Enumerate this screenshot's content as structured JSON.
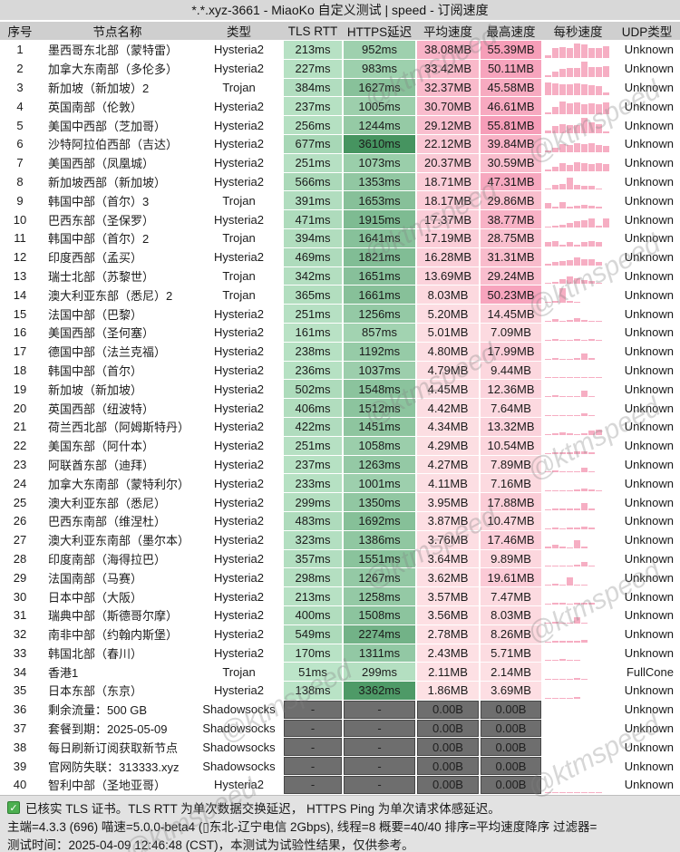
{
  "title": "*.*.xyz-3661 - MiaoKo 自定义测试 | speed - 订阅速度",
  "columns": [
    "序号",
    "节点名称",
    "类型",
    "TLS RTT",
    "HTTPS延迟",
    "平均速度",
    "最高速度",
    "每秒速度",
    "UDP类型"
  ],
  "colors": {
    "green_light": "#bee6ca",
    "green_dark": "#469460",
    "pink_light": "#fde3e6",
    "pink_dark": "#f69db8",
    "bar_pink": "#f6aec3",
    "gray_cell": "#6e6e6e"
  },
  "scales": {
    "latency_max_ms": 3610,
    "speed_max_mb": 55.81
  },
  "rows": [
    {
      "idx": "1",
      "name": "墨西哥东北部（蒙特雷）",
      "type": "Hysteria2",
      "tls": "213ms",
      "tls_ms": 213,
      "https": "952ms",
      "https_ms": 952,
      "avg": "38.08MB",
      "avg_mb": 38.08,
      "max": "55.39MB",
      "max_mb": 55.39,
      "udp": "Unknown",
      "spark": [
        0.15,
        0.62,
        0.66,
        0.62,
        0.88,
        0.82,
        0.62,
        0.58,
        0.72
      ]
    },
    {
      "idx": "2",
      "name": "加拿大东南部（多伦多）",
      "type": "Hysteria2",
      "tls": "227ms",
      "tls_ms": 227,
      "https": "983ms",
      "https_ms": 983,
      "avg": "33.42MB",
      "avg_mb": 33.42,
      "max": "50.11MB",
      "max_mb": 50.11,
      "udp": "Unknown",
      "spark": [
        0.08,
        0.3,
        0.48,
        0.52,
        0.56,
        0.92,
        0.6,
        0.58,
        0.62
      ]
    },
    {
      "idx": "3",
      "name": "新加坡（新加坡）2",
      "type": "Trojan",
      "tls": "384ms",
      "tls_ms": 384,
      "https": "1627ms",
      "https_ms": 1627,
      "avg": "32.37MB",
      "avg_mb": 32.37,
      "max": "45.58MB",
      "max_mb": 45.58,
      "udp": "Unknown",
      "spark": [
        0.78,
        0.72,
        0.68,
        0.68,
        0.72,
        0.68,
        0.66,
        0.6,
        0.18
      ]
    },
    {
      "idx": "4",
      "name": "英国南部（伦敦）",
      "type": "Hysteria2",
      "tls": "237ms",
      "tls_ms": 237,
      "https": "1005ms",
      "https_ms": 1005,
      "avg": "30.70MB",
      "avg_mb": 30.7,
      "max": "46.61MB",
      "max_mb": 46.61,
      "udp": "Unknown",
      "spark": [
        0.12,
        0.48,
        0.78,
        0.66,
        0.72,
        0.62,
        0.68,
        0.62,
        0.72
      ]
    },
    {
      "idx": "5",
      "name": "美国中西部（芝加哥）",
      "type": "Hysteria2",
      "tls": "256ms",
      "tls_ms": 256,
      "https": "1244ms",
      "https_ms": 1244,
      "avg": "29.12MB",
      "avg_mb": 29.12,
      "max": "55.81MB",
      "max_mb": 55.81,
      "udp": "Unknown",
      "spark": [
        0.18,
        0.45,
        0.58,
        0.52,
        0.48,
        0.92,
        0.66,
        0.58,
        0.1
      ]
    },
    {
      "idx": "6",
      "name": "沙特阿拉伯西部（吉达）",
      "type": "Hysteria2",
      "tls": "677ms",
      "tls_ms": 677,
      "https": "3610ms",
      "https_ms": 3610,
      "avg": "22.12MB",
      "avg_mb": 22.12,
      "max": "39.84MB",
      "max_mb": 39.84,
      "udp": "Unknown",
      "spark": [
        0.08,
        0.28,
        0.48,
        0.42,
        0.56,
        0.48,
        0.56,
        0.44,
        0.38
      ]
    },
    {
      "idx": "7",
      "name": "美国西部（凤凰城）",
      "type": "Hysteria2",
      "tls": "251ms",
      "tls_ms": 251,
      "https": "1073ms",
      "https_ms": 1073,
      "avg": "20.37MB",
      "avg_mb": 20.37,
      "max": "30.59MB",
      "max_mb": 30.59,
      "udp": "Unknown",
      "spark": [
        0.1,
        0.28,
        0.46,
        0.38,
        0.52,
        0.48,
        0.42,
        0.48,
        0.42
      ]
    },
    {
      "idx": "8",
      "name": "新加坡西部（新加坡）",
      "type": "Hysteria2",
      "tls": "566ms",
      "tls_ms": 566,
      "https": "1353ms",
      "https_ms": 1353,
      "avg": "18.71MB",
      "avg_mb": 18.71,
      "max": "47.31MB",
      "max_mb": 47.31,
      "udp": "Unknown",
      "spark": [
        0.1,
        0.32,
        0.38,
        0.72,
        0.3,
        0.26,
        0.22,
        0.1
      ]
    },
    {
      "idx": "9",
      "name": "韩国中部（首尔）3",
      "type": "Trojan",
      "tls": "391ms",
      "tls_ms": 391,
      "https": "1653ms",
      "https_ms": 1653,
      "avg": "18.17MB",
      "avg_mb": 18.17,
      "max": "29.86MB",
      "max_mb": 29.86,
      "udp": "Unknown",
      "spark": [
        0.32,
        0.1,
        0.38,
        0.1,
        0.18,
        0.24,
        0.2,
        0.1
      ]
    },
    {
      "idx": "10",
      "name": "巴西东部（圣保罗）",
      "type": "Hysteria2",
      "tls": "471ms",
      "tls_ms": 471,
      "https": "1915ms",
      "https_ms": 1915,
      "avg": "17.37MB",
      "avg_mb": 17.37,
      "max": "38.77MB",
      "max_mb": 38.77,
      "udp": "Unknown",
      "spark": [
        0.05,
        0.1,
        0.18,
        0.28,
        0.38,
        0.45,
        0.58,
        0.12,
        0.58
      ]
    },
    {
      "idx": "11",
      "name": "韩国中部（首尔）2",
      "type": "Trojan",
      "tls": "394ms",
      "tls_ms": 394,
      "https": "1641ms",
      "https_ms": 1641,
      "avg": "17.19MB",
      "avg_mb": 17.19,
      "max": "28.75MB",
      "max_mb": 28.75,
      "udp": "Unknown",
      "spark": [
        0.28,
        0.34,
        0.1,
        0.24,
        0.1,
        0.28,
        0.3,
        0.24
      ]
    },
    {
      "idx": "12",
      "name": "印度西部（孟买）",
      "type": "Hysteria2",
      "tls": "469ms",
      "tls_ms": 469,
      "https": "1821ms",
      "https_ms": 1821,
      "avg": "16.28MB",
      "avg_mb": 16.28,
      "max": "31.31MB",
      "max_mb": 31.31,
      "udp": "Unknown",
      "spark": [
        0.08,
        0.18,
        0.24,
        0.3,
        0.48,
        0.38,
        0.34,
        0.18
      ]
    },
    {
      "idx": "13",
      "name": "瑞士北部（苏黎世）",
      "type": "Trojan",
      "tls": "342ms",
      "tls_ms": 342,
      "https": "1651ms",
      "https_ms": 1651,
      "avg": "13.69MB",
      "avg_mb": 13.69,
      "max": "29.24MB",
      "max_mb": 29.24,
      "udp": "Unknown",
      "spark": [
        0.06,
        0.12,
        0.3,
        0.44,
        0.34,
        0.24,
        0.18,
        0.06
      ]
    },
    {
      "idx": "14",
      "name": "澳大利亚东部（悉尼）2",
      "type": "Trojan",
      "tls": "365ms",
      "tls_ms": 365,
      "https": "1661ms",
      "https_ms": 1661,
      "avg": "8.03MB",
      "avg_mb": 8.03,
      "max": "50.23MB",
      "max_mb": 50.23,
      "udp": "Unknown",
      "spark": [
        0.05,
        0.12,
        0.88,
        0.14,
        0.05
      ]
    },
    {
      "idx": "15",
      "name": "法国中部（巴黎）",
      "type": "Hysteria2",
      "tls": "251ms",
      "tls_ms": 251,
      "https": "1256ms",
      "https_ms": 1256,
      "avg": "5.20MB",
      "avg_mb": 5.2,
      "max": "14.45MB",
      "max_mb": 14.45,
      "udp": "Unknown",
      "spark": [
        0.05,
        0.14,
        0.05,
        0.1,
        0.22,
        0.1,
        0.08,
        0.05
      ]
    },
    {
      "idx": "16",
      "name": "美国西部（圣何塞）",
      "type": "Hysteria2",
      "tls": "161ms",
      "tls_ms": 161,
      "https": "857ms",
      "https_ms": 857,
      "avg": "5.01MB",
      "avg_mb": 5.01,
      "max": "7.09MB",
      "max_mb": 7.09,
      "udp": "Unknown",
      "spark": [
        0.05,
        0.08,
        0.04,
        0.06,
        0.1,
        0.05,
        0.08,
        0.04
      ]
    },
    {
      "idx": "17",
      "name": "德国中部（法兰克福）",
      "type": "Hysteria2",
      "tls": "238ms",
      "tls_ms": 238,
      "https": "1192ms",
      "https_ms": 1192,
      "avg": "4.80MB",
      "avg_mb": 4.8,
      "max": "17.99MB",
      "max_mb": 17.99,
      "udp": "Unknown",
      "spark": [
        0.04,
        0.06,
        0.05,
        0.04,
        0.06,
        0.38,
        0.06
      ]
    },
    {
      "idx": "18",
      "name": "韩国中部（首尔）",
      "type": "Hysteria2",
      "tls": "236ms",
      "tls_ms": 236,
      "https": "1037ms",
      "https_ms": 1037,
      "avg": "4.79MB",
      "avg_mb": 4.79,
      "max": "9.44MB",
      "max_mb": 9.44,
      "udp": "Unknown",
      "spark": [
        0.05,
        0.08,
        0.06,
        0.1,
        0.08,
        0.06,
        0.1,
        0.05
      ]
    },
    {
      "idx": "19",
      "name": "新加坡（新加坡）",
      "type": "Hysteria2",
      "tls": "502ms",
      "tls_ms": 502,
      "https": "1548ms",
      "https_ms": 1548,
      "avg": "4.45MB",
      "avg_mb": 4.45,
      "max": "12.36MB",
      "max_mb": 12.36,
      "udp": "Unknown",
      "spark": [
        0.06,
        0.1,
        0.05,
        0.06,
        0.08,
        0.4,
        0.08
      ]
    },
    {
      "idx": "20",
      "name": "英国西部（纽波特）",
      "type": "Hysteria2",
      "tls": "406ms",
      "tls_ms": 406,
      "https": "1512ms",
      "https_ms": 1512,
      "avg": "4.42MB",
      "avg_mb": 4.42,
      "max": "7.64MB",
      "max_mb": 7.64,
      "udp": "Unknown",
      "spark": [
        0.04,
        0.08,
        0.08,
        0.08,
        0.06,
        0.14,
        0.06
      ]
    },
    {
      "idx": "21",
      "name": "荷兰西北部（阿姆斯特丹）",
      "type": "Hysteria2",
      "tls": "422ms",
      "tls_ms": 422,
      "https": "1451ms",
      "https_ms": 1451,
      "avg": "4.34MB",
      "avg_mb": 4.34,
      "max": "13.32MB",
      "max_mb": 13.32,
      "udp": "Unknown",
      "spark": [
        0.05,
        0.12,
        0.14,
        0.1,
        0.05,
        0.08,
        0.28,
        0.3
      ]
    },
    {
      "idx": "22",
      "name": "美国东部（阿什本）",
      "type": "Hysteria2",
      "tls": "251ms",
      "tls_ms": 251,
      "https": "1058ms",
      "https_ms": 1058,
      "avg": "4.29MB",
      "avg_mb": 4.29,
      "max": "10.54MB",
      "max_mb": 10.54,
      "udp": "Unknown",
      "spark": [
        0.04,
        0.08,
        0.06,
        0.1,
        0.14,
        0.12,
        0.08
      ]
    },
    {
      "idx": "23",
      "name": "阿联酋东部（迪拜）",
      "type": "Hysteria2",
      "tls": "237ms",
      "tls_ms": 237,
      "https": "1263ms",
      "https_ms": 1263,
      "avg": "4.27MB",
      "avg_mb": 4.27,
      "max": "7.89MB",
      "max_mb": 7.89,
      "udp": "Unknown",
      "spark": [
        0.05,
        0.14,
        0.08,
        0.05,
        0.06,
        0.3,
        0.1
      ]
    },
    {
      "idx": "24",
      "name": "加拿大东南部（蒙特利尔）",
      "type": "Hysteria2",
      "tls": "233ms",
      "tls_ms": 233,
      "https": "1001ms",
      "https_ms": 1001,
      "avg": "4.11MB",
      "avg_mb": 4.11,
      "max": "7.16MB",
      "max_mb": 7.16,
      "udp": "Unknown",
      "spark": [
        0.04,
        0.08,
        0.06,
        0.05,
        0.14,
        0.18,
        0.1,
        0.08
      ]
    },
    {
      "idx": "25",
      "name": "澳大利亚东部（悉尼）",
      "type": "Hysteria2",
      "tls": "299ms",
      "tls_ms": 299,
      "https": "1350ms",
      "https_ms": 1350,
      "avg": "3.95MB",
      "avg_mb": 3.95,
      "max": "17.88MB",
      "max_mb": 17.88,
      "udp": "Unknown",
      "spark": [
        0.05,
        0.1,
        0.08,
        0.12,
        0.08,
        0.42,
        0.08
      ]
    },
    {
      "idx": "26",
      "name": "巴西东南部（维涅杜）",
      "type": "Hysteria2",
      "tls": "483ms",
      "tls_ms": 483,
      "https": "1692ms",
      "https_ms": 1692,
      "avg": "3.87MB",
      "avg_mb": 3.87,
      "max": "10.47MB",
      "max_mb": 10.47,
      "udp": "Unknown",
      "spark": [
        0.05,
        0.08,
        0.06,
        0.1,
        0.08,
        0.14,
        0.12
      ]
    },
    {
      "idx": "27",
      "name": "澳大利亚东南部（墨尔本）",
      "type": "Hysteria2",
      "tls": "323ms",
      "tls_ms": 323,
      "https": "1386ms",
      "https_ms": 1386,
      "avg": "3.76MB",
      "avg_mb": 3.76,
      "max": "17.46MB",
      "max_mb": 17.46,
      "udp": "Unknown",
      "spark": [
        0.06,
        0.22,
        0.06,
        0.05,
        0.45,
        0.08
      ]
    },
    {
      "idx": "28",
      "name": "印度南部（海得拉巴）",
      "type": "Hysteria2",
      "tls": "357ms",
      "tls_ms": 357,
      "https": "1551ms",
      "https_ms": 1551,
      "avg": "3.64MB",
      "avg_mb": 3.64,
      "max": "9.89MB",
      "max_mb": 9.89,
      "udp": "Unknown",
      "spark": [
        0.05,
        0.1,
        0.08,
        0.06,
        0.12,
        0.3,
        0.08
      ]
    },
    {
      "idx": "29",
      "name": "法国南部（马赛）",
      "type": "Hysteria2",
      "tls": "298ms",
      "tls_ms": 298,
      "https": "1267ms",
      "https_ms": 1267,
      "avg": "3.62MB",
      "avg_mb": 3.62,
      "max": "19.61MB",
      "max_mb": 19.61,
      "udp": "Unknown",
      "spark": [
        0.06,
        0.1,
        0.05,
        0.5,
        0.08,
        0.06
      ]
    },
    {
      "idx": "30",
      "name": "日本中部（大阪）",
      "type": "Hysteria2",
      "tls": "213ms",
      "tls_ms": 213,
      "https": "1258ms",
      "https_ms": 1258,
      "avg": "3.57MB",
      "avg_mb": 3.57,
      "max": "7.47MB",
      "max_mb": 7.47,
      "udp": "Unknown",
      "spark": [
        0.05,
        0.08,
        0.1,
        0.06,
        0.08,
        0.12,
        0.08
      ]
    },
    {
      "idx": "31",
      "name": "瑞典中部（斯德哥尔摩）",
      "type": "Hysteria2",
      "tls": "400ms",
      "tls_ms": 400,
      "https": "1508ms",
      "https_ms": 1508,
      "avg": "3.56MB",
      "avg_mb": 3.56,
      "max": "8.03MB",
      "max_mb": 8.03,
      "udp": "Unknown",
      "spark": [
        0.05,
        0.1,
        0.04,
        0.06,
        0.35,
        0.06
      ]
    },
    {
      "idx": "32",
      "name": "南非中部（约翰内斯堡）",
      "type": "Hysteria2",
      "tls": "549ms",
      "tls_ms": 549,
      "https": "2274ms",
      "https_ms": 2274,
      "avg": "2.78MB",
      "avg_mb": 2.78,
      "max": "8.26MB",
      "max_mb": 8.26,
      "udp": "Unknown",
      "spark": [
        0.04,
        0.08,
        0.06,
        0.1,
        0.08,
        0.12
      ]
    },
    {
      "idx": "33",
      "name": "韩国北部（春川）",
      "type": "Hysteria2",
      "tls": "170ms",
      "tls_ms": 170,
      "https": "1311ms",
      "https_ms": 1311,
      "avg": "2.43MB",
      "avg_mb": 2.43,
      "max": "5.71MB",
      "max_mb": 5.71,
      "udp": "Unknown",
      "spark": [
        0.04,
        0.1,
        0.12,
        0.08,
        0.06
      ]
    },
    {
      "idx": "34",
      "name": "香港1",
      "type": "Trojan",
      "tls": "51ms",
      "tls_ms": 51,
      "https": "299ms",
      "https_ms": 299,
      "avg": "2.11MB",
      "avg_mb": 2.11,
      "max": "2.14MB",
      "max_mb": 2.14,
      "udp": "FullCone",
      "spark": [
        0.03,
        0.05,
        0.08,
        0.06,
        0.12,
        0.04
      ]
    },
    {
      "idx": "35",
      "name": "日本东部（东京）",
      "type": "Hysteria2",
      "tls": "138ms",
      "tls_ms": 138,
      "https": "3362ms",
      "https_ms": 3362,
      "avg": "1.86MB",
      "avg_mb": 1.86,
      "max": "3.69MB",
      "max_mb": 3.69,
      "udp": "Unknown",
      "spark": [
        0.03,
        0.04,
        0.06,
        0.04,
        0.08
      ]
    },
    {
      "idx": "36",
      "name": "剩余流量：500 GB",
      "type": "Shadowsocks",
      "tls": "-",
      "https": "-",
      "avg": "0.00B",
      "max": "0.00B",
      "udp": "Unknown",
      "gray": true,
      "spark": []
    },
    {
      "idx": "37",
      "name": "套餐到期：2025-05-09",
      "type": "Shadowsocks",
      "tls": "-",
      "https": "-",
      "avg": "0.00B",
      "max": "0.00B",
      "udp": "Unknown",
      "gray": true,
      "spark": []
    },
    {
      "idx": "38",
      "name": "每日刷新订阅获取新节点",
      "type": "Shadowsocks",
      "tls": "-",
      "https": "-",
      "avg": "0.00B",
      "max": "0.00B",
      "udp": "Unknown",
      "gray": true,
      "spark": []
    },
    {
      "idx": "39",
      "name": "官网防失联：313333.xyz",
      "type": "Shadowsocks",
      "tls": "-",
      "https": "-",
      "avg": "0.00B",
      "max": "0.00B",
      "udp": "Unknown",
      "gray": true,
      "spark": []
    },
    {
      "idx": "40",
      "name": "智利中部（圣地亚哥）",
      "type": "Hysteria2",
      "tls": "-",
      "https": "-",
      "avg": "0.00B",
      "max": "0.00B",
      "udp": "Unknown",
      "gray": true,
      "spark": [
        0.04,
        0.04,
        0.04,
        0.04,
        0.04,
        0.04,
        0.04,
        0.04
      ]
    }
  ],
  "footer": {
    "line1": "已核实 TLS 证书。TLS RTT 为单次数据交换延迟， HTTPS Ping 为单次请求体感延迟。",
    "line2": "主端=4.3.3 (696) 喵速=5.0.0-beta4 (▯东北-辽宁电信 2Gbps), 线程=8 概要=40/40 排序=平均速度降序 过滤器=",
    "line3": "测试时间：2025-04-09 12:46:48 (CST)，本测试为试验性结果，仅供参考。"
  },
  "watermark": {
    "text": "@ktmspeed"
  }
}
